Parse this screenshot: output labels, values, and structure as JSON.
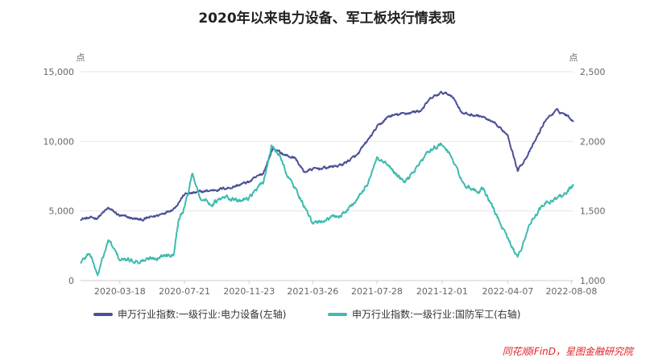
{
  "chart_data": {
    "type": "line",
    "title": "2020年以来电力设备、军工板块行情表现",
    "left_axis": {
      "unit": "点",
      "min": 0,
      "max": 15000,
      "ticks": [
        0,
        5000,
        10000,
        15000
      ],
      "tick_labels": [
        "0",
        "5,000",
        "10,000",
        "15,000"
      ]
    },
    "right_axis": {
      "unit": "点",
      "min": 1000,
      "max": 2500,
      "ticks": [
        1000,
        1500,
        2000,
        2500
      ],
      "tick_labels": [
        "1,000",
        "1,500",
        "2,000",
        "2,500"
      ]
    },
    "x_tick_labels": [
      "2020-03-18",
      "2020-07-21",
      "2020-11-23",
      "2021-03-26",
      "2021-07-28",
      "2021-12-01",
      "2022-04-07",
      "2022-08-08"
    ],
    "x_range": [
      "2020-01-02",
      "2022-08-12"
    ],
    "grid": true,
    "legend_position": "bottom",
    "series": [
      {
        "name": "申万行业指数:一级行业:电力设备(左轴)",
        "axis": "left",
        "color": "#4b5096",
        "points": [
          [
            "2020-01-02",
            4450
          ],
          [
            "2020-02-03",
            4500
          ],
          [
            "2020-02-25",
            5200
          ],
          [
            "2020-03-18",
            4650
          ],
          [
            "2020-04-28",
            4350
          ],
          [
            "2020-06-01",
            4700
          ],
          [
            "2020-07-01",
            5200
          ],
          [
            "2020-07-21",
            6200
          ],
          [
            "2020-08-10",
            6300
          ],
          [
            "2020-09-15",
            6500
          ],
          [
            "2020-10-20",
            6700
          ],
          [
            "2020-11-23",
            7100
          ],
          [
            "2020-12-20",
            7700
          ],
          [
            "2021-01-08",
            9500
          ],
          [
            "2021-02-01",
            9000
          ],
          [
            "2021-02-20",
            8800
          ],
          [
            "2021-03-09",
            7800
          ],
          [
            "2021-03-26",
            8000
          ],
          [
            "2021-04-20",
            8100
          ],
          [
            "2021-05-20",
            8300
          ],
          [
            "2021-06-20",
            9000
          ],
          [
            "2021-07-28",
            11000
          ],
          [
            "2021-08-20",
            11800
          ],
          [
            "2021-09-20",
            12000
          ],
          [
            "2021-10-20",
            12200
          ],
          [
            "2021-11-10",
            13100
          ],
          [
            "2021-12-01",
            13500
          ],
          [
            "2021-12-20",
            13300
          ],
          [
            "2022-01-10",
            12000
          ],
          [
            "2022-02-15",
            11800
          ],
          [
            "2022-03-10",
            11300
          ],
          [
            "2022-04-07",
            10500
          ],
          [
            "2022-04-26",
            7900
          ],
          [
            "2022-05-20",
            9300
          ],
          [
            "2022-06-20",
            11600
          ],
          [
            "2022-07-10",
            12200
          ],
          [
            "2022-07-25",
            12000
          ],
          [
            "2022-08-12",
            11500
          ]
        ]
      },
      {
        "name": "申万行业指数:一级行业:国防军工(右轴)",
        "axis": "right",
        "color": "#3cbcae",
        "points": [
          [
            "2020-01-02",
            1130
          ],
          [
            "2020-01-20",
            1200
          ],
          [
            "2020-02-04",
            1040
          ],
          [
            "2020-02-25",
            1290
          ],
          [
            "2020-03-18",
            1150
          ],
          [
            "2020-04-28",
            1140
          ],
          [
            "2020-06-01",
            1170
          ],
          [
            "2020-06-30",
            1200
          ],
          [
            "2020-07-10",
            1450
          ],
          [
            "2020-07-21",
            1520
          ],
          [
            "2020-08-05",
            1770
          ],
          [
            "2020-08-20",
            1600
          ],
          [
            "2020-09-10",
            1550
          ],
          [
            "2020-10-10",
            1600
          ],
          [
            "2020-11-01",
            1570
          ],
          [
            "2020-11-23",
            1600
          ],
          [
            "2020-12-20",
            1700
          ],
          [
            "2021-01-05",
            1960
          ],
          [
            "2021-01-20",
            1900
          ],
          [
            "2021-02-05",
            1760
          ],
          [
            "2021-03-01",
            1600
          ],
          [
            "2021-03-26",
            1400
          ],
          [
            "2021-04-20",
            1440
          ],
          [
            "2021-05-20",
            1470
          ],
          [
            "2021-06-20",
            1580
          ],
          [
            "2021-07-10",
            1700
          ],
          [
            "2021-07-28",
            1870
          ],
          [
            "2021-08-20",
            1820
          ],
          [
            "2021-09-20",
            1700
          ],
          [
            "2021-10-20",
            1850
          ],
          [
            "2021-11-10",
            1950
          ],
          [
            "2021-12-01",
            1980
          ],
          [
            "2021-12-20",
            1880
          ],
          [
            "2022-01-10",
            1700
          ],
          [
            "2022-01-30",
            1640
          ],
          [
            "2022-02-20",
            1650
          ],
          [
            "2022-03-10",
            1520
          ],
          [
            "2022-03-25",
            1400
          ],
          [
            "2022-04-07",
            1300
          ],
          [
            "2022-04-26",
            1160
          ],
          [
            "2022-05-20",
            1410
          ],
          [
            "2022-06-10",
            1520
          ],
          [
            "2022-06-30",
            1580
          ],
          [
            "2022-07-20",
            1610
          ],
          [
            "2022-08-12",
            1680
          ]
        ]
      }
    ]
  },
  "source": "同花顺iFinD，星图金融研究院"
}
